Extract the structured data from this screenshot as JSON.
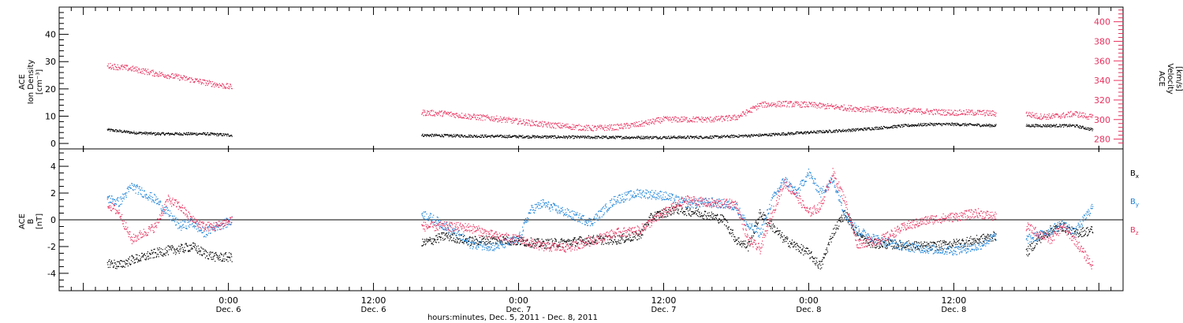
{
  "colors": {
    "black": "#000000",
    "pink": "#e8325f",
    "blue": "#1a82d8"
  },
  "chart_data": [
    {
      "type": "scatter",
      "panel": "top",
      "ylabel": [
        "ACE",
        "Ion Density",
        "[cm⁻³]"
      ],
      "ylabel_right": [
        "ACE",
        "Velocity",
        "[km/s]"
      ],
      "ylim": [
        -2,
        50
      ],
      "y_ticks": [
        0,
        10,
        20,
        30,
        40
      ],
      "y2lim": [
        270,
        415
      ],
      "y2_ticks": [
        280,
        300,
        320,
        340,
        360,
        380,
        400
      ],
      "series": [
        {
          "axis": "left",
          "color": "#000000",
          "segments": [
            {
              "x": [
                -10,
                -8,
                -6,
                -4,
                -2,
                0.3
              ],
              "y": [
                5,
                4,
                3.5,
                3.5,
                3.5,
                3
              ]
            },
            {
              "x": [
                16,
                20,
                24,
                28,
                32,
                36,
                40,
                44,
                48,
                52,
                56,
                58,
                60,
                63.5
              ],
              "y": [
                3,
                2.7,
                2.5,
                2.3,
                2.2,
                2.2,
                2.3,
                3,
                4,
                5,
                6.5,
                7,
                7,
                6.5
              ]
            },
            {
              "x": [
                66,
                68,
                70,
                71.5
              ],
              "y": [
                6.5,
                6.5,
                6.5,
                5
              ]
            }
          ]
        },
        {
          "axis": "right",
          "color": "#e8325f",
          "segments": [
            {
              "x": [
                -10,
                -8,
                -6,
                -4,
                -2,
                0.3
              ],
              "y": [
                355,
                352,
                347,
                343,
                338,
                333
              ]
            },
            {
              "x": [
                16,
                18,
                20,
                22,
                24,
                26,
                28,
                30,
                32,
                34,
                36,
                38,
                40,
                42,
                43,
                44,
                46,
                48,
                50,
                52,
                54,
                56,
                58,
                60,
                62,
                63.5
              ],
              "y": [
                307,
                306,
                303,
                301,
                298,
                295,
                293,
                291,
                292,
                295,
                300,
                300,
                300,
                302,
                308,
                315,
                316,
                315,
                313,
                311,
                310,
                309,
                308,
                307,
                307,
                306
              ]
            },
            {
              "x": [
                66,
                67,
                68,
                69,
                70,
                71.5
              ],
              "y": [
                306,
                303,
                303,
                304,
                306,
                302
              ]
            }
          ]
        }
      ]
    },
    {
      "type": "scatter",
      "panel": "bottom",
      "ylabel": [
        "ACE",
        "B",
        "[nT]"
      ],
      "ylim": [
        -5.3,
        5.3
      ],
      "y_ticks": [
        -4,
        -2,
        0,
        2,
        4
      ],
      "legend": [
        {
          "label": "B",
          "sub": "x",
          "color": "#000000"
        },
        {
          "label": "B",
          "sub": "y",
          "color": "#1a82d8"
        },
        {
          "label": "B",
          "sub": "z",
          "color": "#e8325f"
        }
      ],
      "series": [
        {
          "name": "Bx",
          "color": "#000000",
          "segments": [
            {
              "x": [
                -10,
                -9,
                -8,
                -7,
                -6,
                -5,
                -4,
                -3,
                -2,
                -1,
                0.3
              ],
              "y": [
                -3.2,
                -3.4,
                -3,
                -2.8,
                -2.5,
                -2.3,
                -2.2,
                -2,
                -2.5,
                -2.8,
                -2.8
              ]
            },
            {
              "x": [
                16,
                18,
                20,
                22,
                24,
                26,
                28,
                30,
                32,
                34,
                35,
                37,
                39,
                41,
                42,
                43,
                44,
                45,
                46,
                47,
                48,
                49,
                50,
                51,
                52,
                53,
                54,
                56,
                58,
                60,
                62,
                63.5
              ],
              "y": [
                -1.8,
                -1.2,
                -1.6,
                -1.5,
                -1.6,
                -1.8,
                -1.7,
                -1.5,
                -1.5,
                -1.2,
                0.2,
                0.8,
                0.5,
                0,
                -1.5,
                -2,
                0.5,
                -0.5,
                -1.5,
                -2,
                -2.5,
                -3.5,
                -1,
                0.5,
                -1,
                -1.8,
                -1.8,
                -1.9,
                -2,
                -1.8,
                -1.5,
                -1.2
              ]
            },
            {
              "x": [
                66,
                67,
                68,
                69,
                70,
                71.5
              ],
              "y": [
                -2.5,
                -1.5,
                -0.8,
                -0.5,
                -1,
                -0.8
              ]
            }
          ]
        },
        {
          "name": "By",
          "color": "#1a82d8",
          "segments": [
            {
              "x": [
                -10,
                -9,
                -8,
                -7,
                -6,
                -5,
                -4,
                -3,
                -2,
                -1,
                0.3
              ],
              "y": [
                1.6,
                1.3,
                2.5,
                2,
                1.5,
                0.5,
                -0.5,
                -0.2,
                -1,
                -0.5,
                -0.1
              ]
            },
            {
              "x": [
                16,
                18,
                20,
                22,
                24,
                25,
                26,
                28,
                30,
                32,
                34,
                36,
                38,
                40,
                42,
                43,
                44,
                45,
                46,
                47,
                48,
                49,
                50,
                51,
                52,
                54,
                56,
                58,
                60,
                62,
                63.5
              ],
              "y": [
                0.5,
                -0.5,
                -1.8,
                -2,
                -1.5,
                0.7,
                1.2,
                0.5,
                -0.2,
                1.5,
                2,
                1.8,
                1.2,
                1.3,
                1,
                -0.5,
                -1,
                1.5,
                3,
                2,
                3.5,
                2,
                3,
                0.5,
                -0.8,
                -1.6,
                -2,
                -2.2,
                -2.3,
                -2,
                -1.2
              ]
            },
            {
              "x": [
                66,
                67,
                68,
                69,
                70,
                71.5
              ],
              "y": [
                -1.5,
                -1.2,
                -0.8,
                -0.3,
                -1,
                1
              ]
            }
          ]
        },
        {
          "name": "Bz",
          "color": "#e8325f",
          "segments": [
            {
              "x": [
                -10,
                -9,
                -8,
                -7,
                -6,
                -5,
                -4,
                -3,
                -2,
                -1,
                0.3
              ],
              "y": [
                1.2,
                0.5,
                -1.5,
                -1,
                -0.5,
                1.5,
                1,
                0,
                -0.5,
                -0.5,
                0
              ]
            },
            {
              "x": [
                16,
                18,
                20,
                22,
                24,
                26,
                28,
                30,
                32,
                34,
                36,
                38,
                40,
                42,
                43,
                44,
                45,
                46,
                47,
                48,
                49,
                50,
                51,
                52,
                54,
                56,
                58,
                60,
                62,
                63.5
              ],
              "y": [
                -0.5,
                -0.5,
                -0.6,
                -1.2,
                -1.5,
                -2,
                -2.1,
                -1.6,
                -1,
                -0.8,
                0.5,
                1.5,
                1.2,
                1.2,
                -1.5,
                -2.2,
                0.5,
                2.8,
                1.8,
                0.5,
                1,
                3.5,
                1.5,
                -1.8,
                -1.5,
                -0.5,
                0,
                0.2,
                0.5,
                0.2
              ]
            },
            {
              "x": [
                66,
                67,
                68,
                69,
                70,
                71.5
              ],
              "y": [
                -0.5,
                -1,
                -1.5,
                -0.5,
                -1.5,
                -3.5
              ]
            }
          ]
        }
      ]
    }
  ],
  "x_axis": {
    "range_hours": [
      -14,
      74
    ],
    "tick_labels": [
      {
        "x": 0,
        "time": "0:00",
        "date": "Dec. 6"
      },
      {
        "x": 12,
        "time": "12:00",
        "date": "Dec. 6"
      },
      {
        "x": 24,
        "time": "0:00",
        "date": "Dec. 7"
      },
      {
        "x": 36,
        "time": "12:00",
        "date": "Dec. 7"
      },
      {
        "x": 48,
        "time": "0:00",
        "date": "Dec. 8"
      },
      {
        "x": 60,
        "time": "12:00",
        "date": "Dec. 8"
      }
    ],
    "xlabel": "hours:minutes, Dec.  5, 2011 - Dec.  8, 2011"
  }
}
